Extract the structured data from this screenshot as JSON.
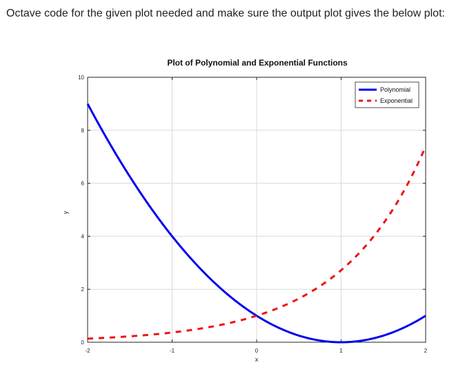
{
  "prompt": "Octave code for the given plot needed and make sure the output plot gives the below plot:",
  "chart_data": {
    "type": "line",
    "title": "Plot of Polynomial and Exponential Functions",
    "xlabel": "x",
    "ylabel": "y",
    "xlim": [
      -2,
      2
    ],
    "ylim": [
      0,
      10
    ],
    "xticks": [
      -2,
      -1,
      0,
      1,
      2
    ],
    "yticks": [
      0,
      2,
      4,
      6,
      8,
      10
    ],
    "grid": true,
    "legend_location": "top-right",
    "series": [
      {
        "name": "Polynomial",
        "formula": "(x-1)^2",
        "color": "#0000ee",
        "style": "solid",
        "x": [
          -2,
          -1.5,
          -1,
          -0.5,
          0,
          0.5,
          1,
          1.5,
          2
        ],
        "y": [
          9,
          6.25,
          4,
          2.25,
          1,
          0.25,
          0,
          0.25,
          1
        ]
      },
      {
        "name": "Exponential",
        "formula": "exp(x)",
        "color": "#ee1111",
        "style": "dashed",
        "x": [
          -2,
          -1.5,
          -1,
          -0.5,
          0,
          0.5,
          1,
          1.5,
          2
        ],
        "y": [
          0.135,
          0.223,
          0.368,
          0.607,
          1,
          1.649,
          2.718,
          4.482,
          7.389
        ]
      }
    ]
  }
}
